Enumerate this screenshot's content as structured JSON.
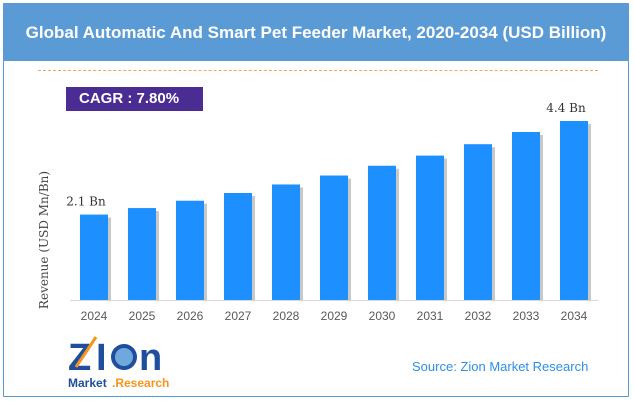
{
  "title": "Global Automatic And Smart Pet Feeder Market, 2020-2034 (USD Billion)",
  "cagr": "CAGR : 7.80%",
  "source": "Source: Zion Market Research",
  "logo_text": "Zion Market.Research",
  "chart_data": {
    "type": "bar",
    "title": "Global Automatic And Smart Pet Feeder Market, 2020-2034 (USD Billion)",
    "ylabel": "Revenue (USD Mn/Bn)",
    "xlabel": "",
    "categories": [
      "2024",
      "2025",
      "2026",
      "2027",
      "2028",
      "2029",
      "2030",
      "2031",
      "2032",
      "2033",
      "2034"
    ],
    "values": [
      2.1,
      2.26,
      2.44,
      2.63,
      2.84,
      3.06,
      3.3,
      3.55,
      3.83,
      4.13,
      4.4
    ],
    "data_labels": {
      "2024": "2.1 Bn",
      "2034": "4.4 Bn"
    },
    "ylim": [
      0,
      5
    ],
    "grid": false,
    "bar_color": "#1e8fff"
  }
}
